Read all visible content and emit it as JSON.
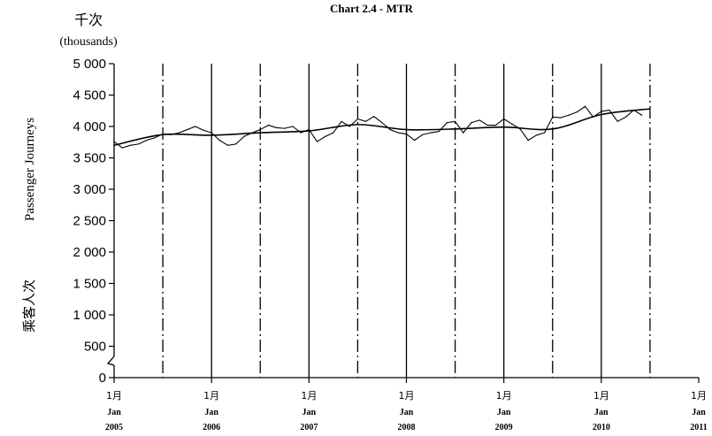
{
  "chart_data": {
    "type": "line",
    "title": "Chart 2.4 -  MTR",
    "unit_zh": "千次",
    "unit_en": "(thousands)",
    "ylabel_zh": "乘客人次",
    "ylabel_en": "Passenger Journeys",
    "ylim": [
      0,
      5000
    ],
    "yticks": [
      {
        "value": 0,
        "label": "0"
      },
      {
        "value": 500,
        "label": "500"
      },
      {
        "value": 1000,
        "label": "1 000"
      },
      {
        "value": 1500,
        "label": "1 500"
      },
      {
        "value": 2000,
        "label": "2 000"
      },
      {
        "value": 2500,
        "label": "2 500"
      },
      {
        "value": 3000,
        "label": "3 000"
      },
      {
        "value": 3500,
        "label": "3 500"
      },
      {
        "value": 4000,
        "label": "4 000"
      },
      {
        "value": 4500,
        "label": "4 500"
      },
      {
        "value": 5000,
        "label": "5 000"
      }
    ],
    "x_range": [
      "2005-01",
      "2011-01"
    ],
    "xticks": [
      {
        "date": "2005-01",
        "line1": "1月",
        "line2": "Jan",
        "line3": "2005"
      },
      {
        "date": "2006-01",
        "line1": "1月",
        "line2": "Jan",
        "line3": "2006"
      },
      {
        "date": "2007-01",
        "line1": "1月",
        "line2": "Jan",
        "line3": "2007"
      },
      {
        "date": "2008-01",
        "line1": "1月",
        "line2": "Jan",
        "line3": "2008"
      },
      {
        "date": "2009-01",
        "line1": "1月",
        "line2": "Jan",
        "line3": "2009"
      },
      {
        "date": "2010-01",
        "line1": "1月",
        "line2": "Jan",
        "line3": "2010"
      },
      {
        "date": "2011-01",
        "line1": "1月",
        "line2": "Jan",
        "line3": "2011"
      }
    ],
    "gridlines": {
      "solid": [
        "2006-01",
        "2007-01",
        "2008-01",
        "2009-01",
        "2010-01"
      ],
      "dashed": [
        "2005-07",
        "2006-07",
        "2007-07",
        "2008-07",
        "2009-07",
        "2010-07"
      ]
    },
    "axis_break": true,
    "grid": false,
    "legend": "none",
    "series": [
      {
        "style": "jagged",
        "color": "#000000",
        "x": [
          "2005-01",
          "2005-02",
          "2005-03",
          "2005-04",
          "2005-05",
          "2005-06",
          "2005-07",
          "2005-08",
          "2005-09",
          "2005-10",
          "2005-11",
          "2005-12",
          "2006-01",
          "2006-02",
          "2006-03",
          "2006-04",
          "2006-05",
          "2006-06",
          "2006-07",
          "2006-08",
          "2006-09",
          "2006-10",
          "2006-11",
          "2006-12",
          "2007-01",
          "2007-02",
          "2007-03",
          "2007-04",
          "2007-05",
          "2007-06",
          "2007-07",
          "2007-08",
          "2007-09",
          "2007-10",
          "2007-11",
          "2007-12",
          "2008-01",
          "2008-02",
          "2008-03",
          "2008-04",
          "2008-05",
          "2008-06",
          "2008-07",
          "2008-08",
          "2008-09",
          "2008-10",
          "2008-11",
          "2008-12",
          "2009-01",
          "2009-02",
          "2009-03",
          "2009-04",
          "2009-05",
          "2009-06",
          "2009-07",
          "2009-08",
          "2009-09",
          "2009-10",
          "2009-11",
          "2009-12",
          "2010-01",
          "2010-02",
          "2010-03",
          "2010-04",
          "2010-05",
          "2010-06"
        ],
        "values": [
          3760,
          3660,
          3700,
          3720,
          3780,
          3820,
          3880,
          3870,
          3900,
          3950,
          4000,
          3940,
          3900,
          3780,
          3700,
          3720,
          3840,
          3900,
          3950,
          4020,
          3980,
          3970,
          4000,
          3900,
          3950,
          3760,
          3840,
          3900,
          4080,
          4000,
          4120,
          4080,
          4160,
          4060,
          3950,
          3900,
          3880,
          3780,
          3870,
          3900,
          3920,
          4060,
          4080,
          3900,
          4060,
          4100,
          4020,
          4020,
          4120,
          4040,
          3960,
          3780,
          3860,
          3900,
          4150,
          4140,
          4180,
          4230,
          4320,
          4150,
          4240,
          4260,
          4080,
          4150,
          4260,
          4180
        ]
      },
      {
        "style": "smooth",
        "color": "#000000",
        "x": [
          "2005-01",
          "2005-07",
          "2006-01",
          "2006-07",
          "2007-01",
          "2007-07",
          "2008-01",
          "2008-07",
          "2009-01",
          "2009-07",
          "2010-01",
          "2010-07"
        ],
        "values": [
          3700,
          3870,
          3860,
          3900,
          3930,
          4030,
          3950,
          3960,
          3990,
          3960,
          4190,
          4280
        ]
      }
    ]
  }
}
